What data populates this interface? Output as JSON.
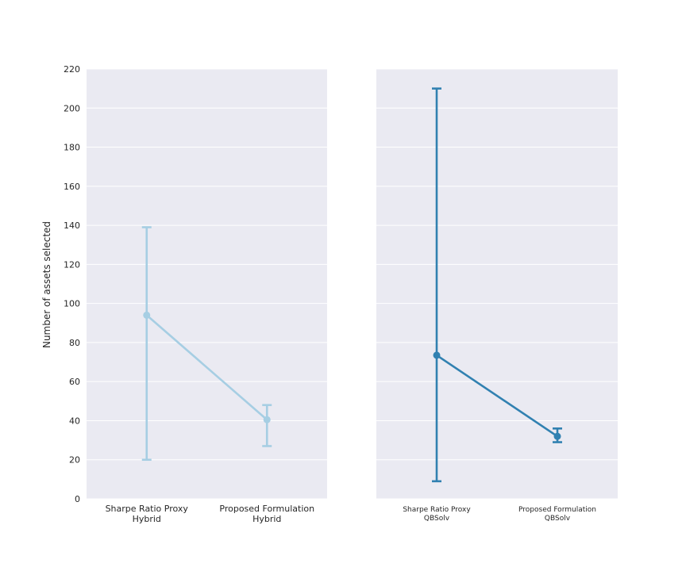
{
  "chart_data": [
    {
      "type": "line",
      "ylabel": "Number of assets selected",
      "ylim": [
        0,
        220
      ],
      "yticks": [
        0,
        20,
        40,
        60,
        80,
        100,
        120,
        140,
        160,
        180,
        200,
        220
      ],
      "grid": true,
      "categories": [
        [
          "Sharpe Ratio Proxy",
          "Hybrid"
        ],
        [
          "Proposed Formulation",
          "Hybrid"
        ]
      ],
      "series": [
        {
          "color": "#a6cee3",
          "values": [
            94,
            40.5
          ],
          "error_low": [
            20,
            27
          ],
          "error_high": [
            139,
            48
          ]
        }
      ]
    },
    {
      "type": "line",
      "ylim": [
        0,
        220
      ],
      "grid": true,
      "categories": [
        [
          "Sharpe Ratio Proxy",
          "QBSolv"
        ],
        [
          "Proposed Formulation",
          "QBSolv"
        ]
      ],
      "series": [
        {
          "color": "#3181b1",
          "values": [
            73.5,
            32
          ],
          "error_low": [
            9,
            29
          ],
          "error_high": [
            210,
            36
          ]
        }
      ]
    }
  ],
  "style": {
    "plot_background": "#eaeaf2",
    "grid_color": "#ffffff",
    "text_color": "#262626"
  }
}
